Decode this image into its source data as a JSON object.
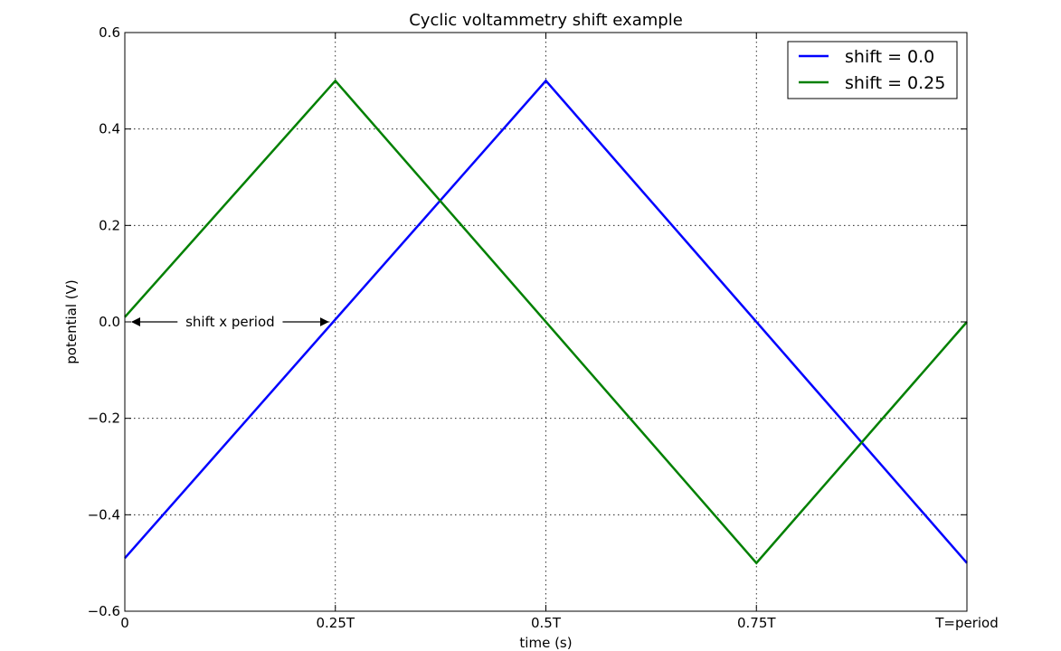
{
  "chart_data": {
    "type": "line",
    "title": "Cyclic voltammetry shift example",
    "xlabel": "time (s)",
    "ylabel": "potential (V)",
    "xlim": [
      0,
      1
    ],
    "ylim": [
      -0.6,
      0.6
    ],
    "x_ticks": [
      {
        "value": 0,
        "label": "0"
      },
      {
        "value": 0.25,
        "label": "0.25T"
      },
      {
        "value": 0.5,
        "label": "0.5T"
      },
      {
        "value": 0.75,
        "label": "0.75T"
      },
      {
        "value": 1,
        "label": "T=period"
      }
    ],
    "y_ticks": [
      {
        "value": 0.6,
        "label": "0.6"
      },
      {
        "value": 0.4,
        "label": "0.4"
      },
      {
        "value": 0.2,
        "label": "0.2"
      },
      {
        "value": 0.0,
        "label": "0.0"
      },
      {
        "value": -0.2,
        "label": "−0.2"
      },
      {
        "value": -0.4,
        "label": "−0.4"
      },
      {
        "value": -0.6,
        "label": "−0.6"
      }
    ],
    "grid": true,
    "legend_position": "top-right",
    "series": [
      {
        "name": "shift = 0.0",
        "color": "#0000ff",
        "points": [
          [
            0,
            -0.49
          ],
          [
            0.5,
            0.5
          ],
          [
            1.0,
            -0.5
          ]
        ]
      },
      {
        "name": "shift = 0.25",
        "color": "#008000",
        "points": [
          [
            0,
            0.01
          ],
          [
            0.25,
            0.5
          ],
          [
            0.75,
            -0.5
          ],
          [
            1.0,
            0.0
          ]
        ]
      }
    ],
    "annotation": {
      "text": "shift x period",
      "arrow_from": [
        0.0,
        0.0
      ],
      "arrow_to": [
        0.25,
        0.0
      ]
    }
  }
}
